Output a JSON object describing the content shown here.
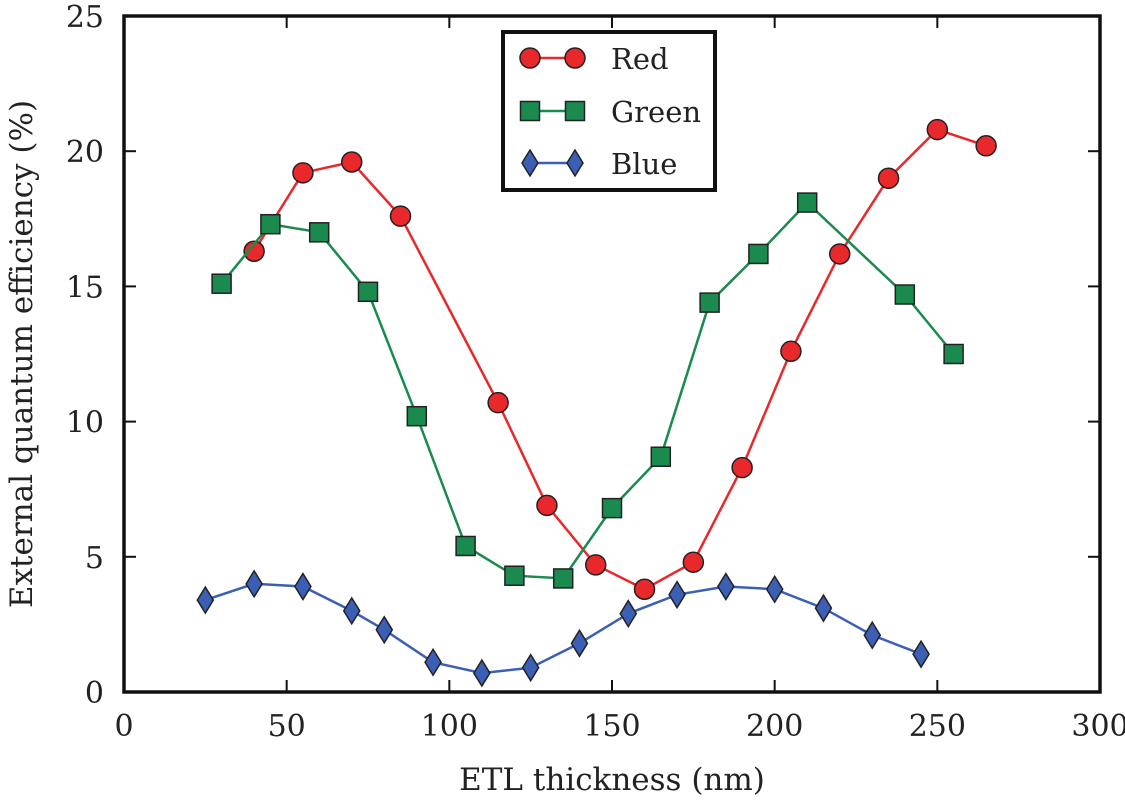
{
  "chart_data": {
    "type": "line",
    "xlabel": "ETL thickness (nm)",
    "ylabel": "External quantum efficiency (%)",
    "xlim": [
      0,
      300
    ],
    "ylim": [
      0,
      25
    ],
    "xticks": [
      0,
      50,
      100,
      150,
      200,
      250,
      300
    ],
    "yticks": [
      0,
      5,
      10,
      15,
      20,
      25
    ],
    "grid": false,
    "legend_position": "top-center",
    "series": [
      {
        "name": "Red",
        "color": "#e8282b",
        "marker": "circle",
        "x": [
          40,
          55,
          70,
          85,
          115,
          130,
          145,
          160,
          175,
          190,
          205,
          220,
          235,
          250,
          265
        ],
        "y": [
          16.3,
          19.2,
          19.6,
          17.6,
          10.7,
          6.9,
          4.7,
          3.8,
          4.8,
          8.3,
          12.6,
          16.2,
          19.0,
          20.8,
          20.2
        ]
      },
      {
        "name": "Green",
        "color": "#1a8a4e",
        "marker": "square",
        "x": [
          30,
          45,
          60,
          75,
          90,
          105,
          120,
          135,
          150,
          165,
          180,
          195,
          210,
          240,
          255
        ],
        "y": [
          15.1,
          17.3,
          17.0,
          14.8,
          10.2,
          5.4,
          4.3,
          4.2,
          6.8,
          8.7,
          14.4,
          16.2,
          18.1,
          14.7,
          12.5
        ]
      },
      {
        "name": "Blue",
        "color": "#3a5fb5",
        "marker": "diamond",
        "x": [
          25,
          40,
          55,
          70,
          80,
          95,
          110,
          125,
          140,
          155,
          170,
          185,
          200,
          215,
          230,
          245
        ],
        "y": [
          3.4,
          4.0,
          3.9,
          3.0,
          2.3,
          1.1,
          0.7,
          0.9,
          1.8,
          2.9,
          3.6,
          3.9,
          3.8,
          3.1,
          2.1,
          1.4
        ]
      }
    ]
  }
}
